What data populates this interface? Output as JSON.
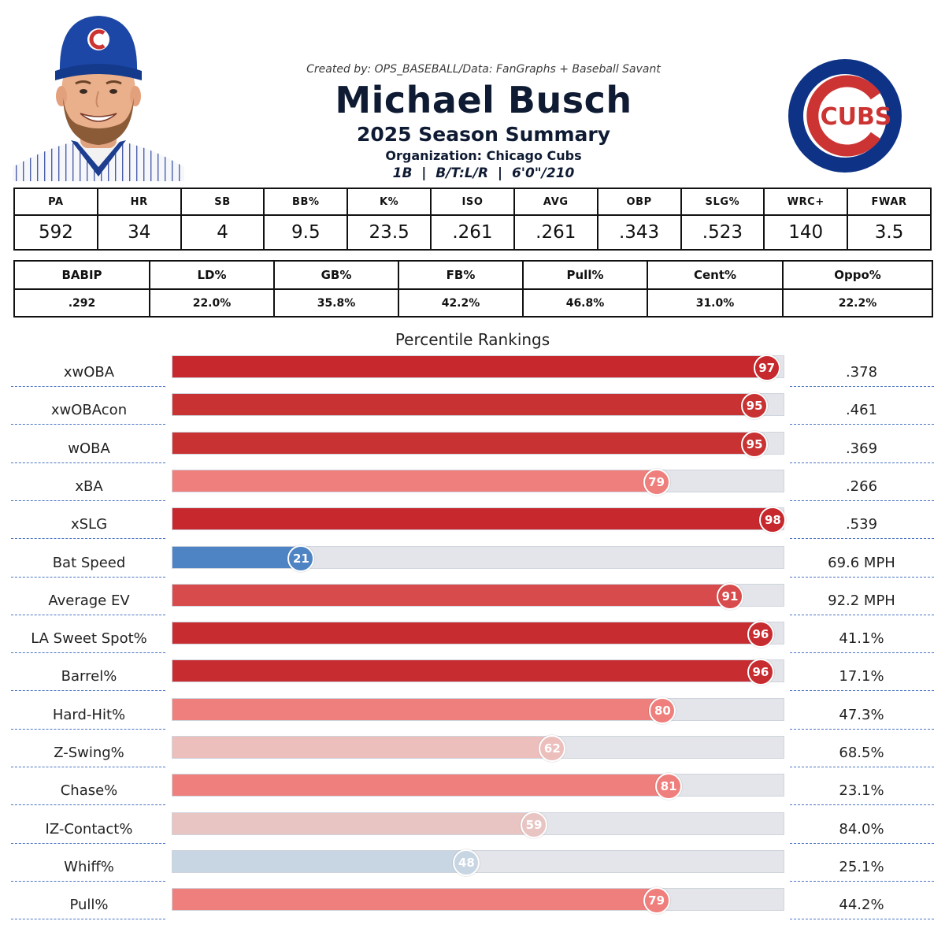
{
  "header": {
    "credit": "Created by: OPS_BASEBALL/Data: FanGraphs + Baseball Savant",
    "player_name": "Michael Busch",
    "season_title": "2025 Season Summary",
    "organization": "Organization: Chicago Cubs",
    "bio": "1B  |  B/T:L/R  |  6'0\"/210",
    "logo_text": "CUBS"
  },
  "colors": {
    "elite_red": "#c6282d",
    "red": "#d84b4c",
    "light_red": "#ee7f7c",
    "pale_red": "#ecbfbd",
    "paler_red": "#e8c5c3",
    "grey_blue": "#c8d5e2",
    "blue": "#4f84c4",
    "cubs_blue": "#0e3386",
    "cubs_red": "#cc3433"
  },
  "table1": {
    "headers": [
      "PA",
      "HR",
      "SB",
      "BB%",
      "K%",
      "ISO",
      "AVG",
      "OBP",
      "SLG%",
      "WRC+",
      "FWAR"
    ],
    "values": [
      "592",
      "34",
      "4",
      "9.5",
      "23.5",
      ".261",
      ".261",
      ".343",
      ".523",
      "140",
      "3.5"
    ]
  },
  "table2": {
    "headers": [
      "BABIP",
      "LD%",
      "GB%",
      "FB%",
      "Pull%",
      "Cent%",
      "Oppo%"
    ],
    "values": [
      ".292",
      "22.0%",
      "35.8%",
      "42.2%",
      "46.8%",
      "31.0%",
      "22.2%"
    ]
  },
  "chart_data": {
    "type": "bar",
    "title": "Percentile Rankings",
    "orientation": "horizontal",
    "xlim": [
      0,
      100
    ],
    "categories": [
      "xwOBA",
      "xwOBAcon",
      "wOBA",
      "xBA",
      "xSLG",
      "Bat Speed",
      "Average EV",
      "LA Sweet Spot%",
      "Barrel%",
      "Hard-Hit%",
      "Z-Swing%",
      "Chase%",
      "IZ-Contact%",
      "Whiff%",
      "Pull%"
    ],
    "values": [
      97,
      95,
      95,
      79,
      98,
      21,
      91,
      96,
      96,
      80,
      62,
      81,
      59,
      48,
      79
    ],
    "stat_values": [
      ".378",
      ".461",
      ".369",
      ".266",
      ".539",
      "69.6 MPH",
      "92.2 MPH",
      "41.1%",
      "17.1%",
      "47.3%",
      "68.5%",
      "23.1%",
      "84.0%",
      "25.1%",
      "44.2%"
    ],
    "bar_colors": [
      "#c6282d",
      "#c93232",
      "#c93232",
      "#ee7f7c",
      "#c6282d",
      "#4f84c4",
      "#d84b4c",
      "#c72c30",
      "#c72c30",
      "#ee7f7c",
      "#ecbfbd",
      "#ee7f7c",
      "#e8c5c3",
      "#c8d5e2",
      "#ee7f7c"
    ]
  }
}
